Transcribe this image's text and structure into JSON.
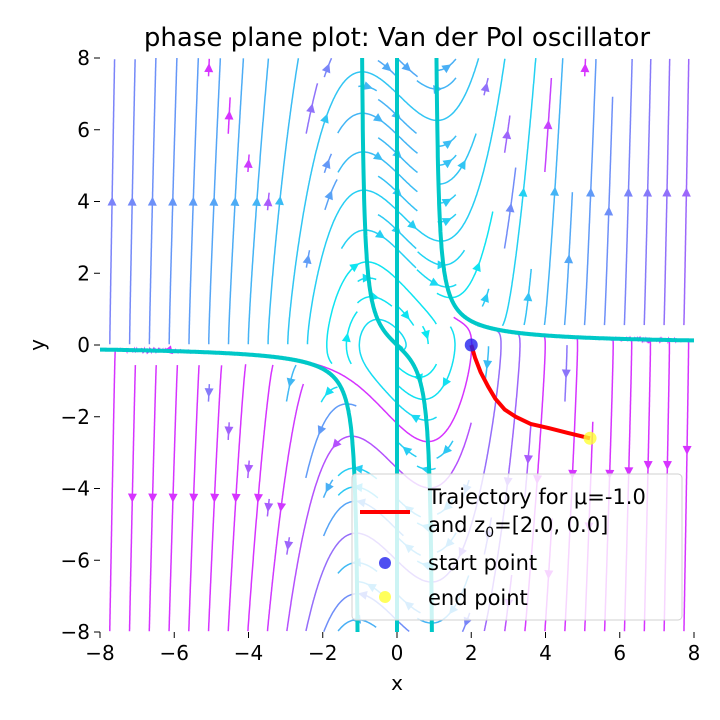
{
  "chart_data": {
    "type": "streamplot",
    "title": "phase plane plot: Van der Pol oscillator",
    "xlabel": "x",
    "ylabel": "y",
    "xlim": [
      -8,
      8
    ],
    "ylim": [
      -8,
      8
    ],
    "xticks": [
      -8,
      -6,
      -4,
      -2,
      0,
      2,
      4,
      6,
      8
    ],
    "yticks": [
      -8,
      -6,
      -4,
      -2,
      0,
      2,
      4,
      6,
      8
    ],
    "grid": false,
    "mu": -1.0,
    "z0": [
      2.0,
      0.0
    ],
    "colors": {
      "stream_low": "#00f0f0",
      "stream_high": "#d633ff",
      "nullcline": "#00c8c8",
      "trajectory": "#ff0000",
      "start_point": "#2222ee",
      "end_point": "#ffff33"
    },
    "trajectory": {
      "x": [
        2.0,
        2.1,
        2.25,
        2.45,
        2.65,
        2.9,
        3.2,
        3.6,
        4.1,
        4.6,
        5.2
      ],
      "y": [
        0.0,
        -0.35,
        -0.75,
        -1.15,
        -1.5,
        -1.8,
        -2.0,
        -2.2,
        -2.32,
        -2.45,
        -2.6
      ]
    },
    "start_point": [
      2.0,
      0.0
    ],
    "end_point": [
      5.2,
      -2.6
    ],
    "legend": {
      "position": "lower-right",
      "entries": [
        {
          "line1": "Trajectory for μ=-1.0",
          "line2": "and z",
          "sub": "0",
          "line2b": "=[2.0, 0.0]"
        },
        {
          "label": "start point"
        },
        {
          "label": "end point"
        }
      ]
    }
  }
}
